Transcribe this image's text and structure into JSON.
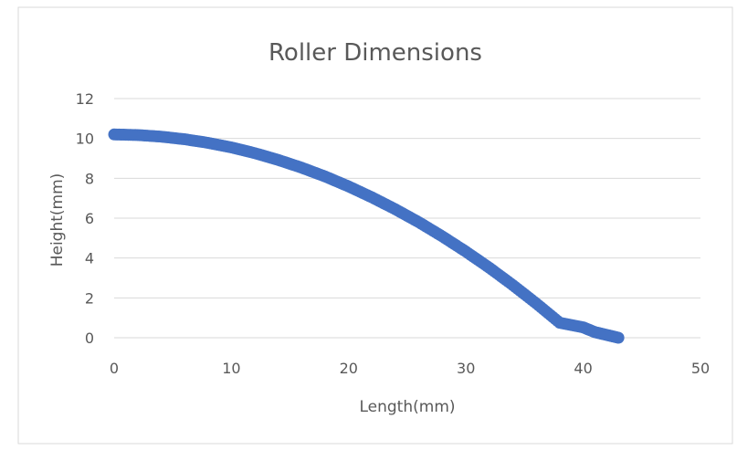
{
  "chart_data": {
    "type": "scatter",
    "title": "Roller Dimensions",
    "xlabel": "Length(mm)",
    "ylabel": "Height(mm)",
    "xlim": [
      0,
      50
    ],
    "ylim": [
      0,
      12
    ],
    "x_ticks": [
      0,
      10,
      20,
      30,
      40,
      50
    ],
    "y_ticks": [
      0,
      2,
      4,
      6,
      8,
      10,
      12
    ],
    "grid": "horizontal",
    "legend": "none",
    "series": [
      {
        "color": "#4472c4",
        "marker": "circle",
        "points": [
          [
            0,
            10.2
          ],
          [
            2,
            10.17
          ],
          [
            4,
            10.09
          ],
          [
            6,
            9.96
          ],
          [
            8,
            9.78
          ],
          [
            10,
            9.55
          ],
          [
            12,
            9.26
          ],
          [
            14,
            8.92
          ],
          [
            16,
            8.53
          ],
          [
            18,
            8.09
          ],
          [
            20,
            7.59
          ],
          [
            22,
            7.04
          ],
          [
            24,
            6.44
          ],
          [
            26,
            5.79
          ],
          [
            28,
            5.08
          ],
          [
            30,
            4.32
          ],
          [
            32,
            3.51
          ],
          [
            34,
            2.64
          ],
          [
            36,
            1.72
          ],
          [
            38,
            0.75
          ],
          [
            40,
            0.52
          ],
          [
            41,
            0.28
          ],
          [
            42,
            0.14
          ],
          [
            43,
            0
          ]
        ]
      }
    ]
  },
  "colors": {
    "series": "#4472c4",
    "gridline": "#d9d9d9",
    "axis_text": "#595959",
    "title_text": "#595959"
  }
}
